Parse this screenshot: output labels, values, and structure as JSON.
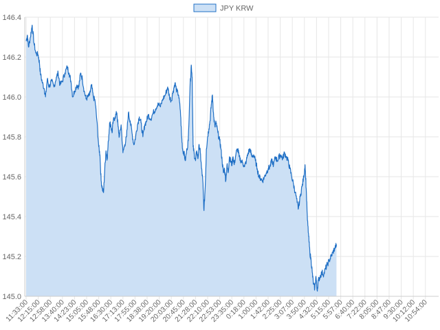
{
  "chart_data": {
    "type": "area",
    "title": "",
    "xlabel": "",
    "ylabel": "",
    "legend": {
      "position": "top-center"
    },
    "grid": true,
    "ylim": [
      145.0,
      146.4
    ],
    "y_ticks": [
      "145.0",
      "145.2",
      "145.4",
      "145.6",
      "145.8",
      "146.0",
      "146.2",
      "146.4"
    ],
    "x_tick_labels": [
      "11:33:00",
      "12:15:00",
      "12:58:00",
      "13:40:00",
      "14:23:00",
      "15:05:00",
      "15:48:00",
      "16:30:00",
      "17:13:00",
      "17:55:00",
      "18:38:00",
      "19:20:00",
      "20:03:00",
      "20:45:00",
      "21:28:00",
      "22:10:00",
      "22:53:00",
      "23:35:00",
      "0:18:00",
      "1:00:00",
      "1:42:00",
      "2:25:00",
      "3:07:00",
      "3:50:00",
      "4:32:00",
      "5:15:00",
      "5:57:00",
      "6:40:00",
      "7:22:00",
      "8:05:00",
      "8:47:00",
      "9:30:00",
      "10:12:00",
      "10:54:00"
    ],
    "series": [
      {
        "name": "JPY KRW",
        "color": "#1f6fc5",
        "fill": "#cce0f5",
        "points": [
          [
            0,
            146.28
          ],
          [
            0.1,
            146.31
          ],
          [
            0.2,
            146.25
          ],
          [
            0.35,
            146.3
          ],
          [
            0.5,
            146.36
          ],
          [
            0.65,
            146.27
          ],
          [
            0.8,
            146.22
          ],
          [
            1.0,
            146.21
          ],
          [
            1.1,
            146.17
          ],
          [
            1.2,
            146.11
          ],
          [
            1.35,
            146.07
          ],
          [
            1.5,
            146.04
          ],
          [
            1.6,
            146.0
          ],
          [
            1.75,
            146.09
          ],
          [
            1.9,
            146.05
          ],
          [
            2.1,
            146.08
          ],
          [
            2.3,
            146.05
          ],
          [
            2.5,
            146.1
          ],
          [
            2.65,
            146.12
          ],
          [
            2.8,
            146.06
          ],
          [
            3.0,
            146.08
          ],
          [
            3.2,
            146.12
          ],
          [
            3.4,
            146.15
          ],
          [
            3.55,
            146.12
          ],
          [
            3.7,
            146.08
          ],
          [
            3.85,
            146.0
          ],
          [
            4.0,
            146.03
          ],
          [
            4.2,
            146.06
          ],
          [
            4.35,
            146.05
          ],
          [
            4.5,
            146.12
          ],
          [
            4.65,
            146.09
          ],
          [
            4.8,
            146.03
          ],
          [
            4.95,
            145.99
          ],
          [
            5.1,
            146.0
          ],
          [
            5.25,
            146.01
          ],
          [
            5.4,
            146.06
          ],
          [
            5.55,
            146.0
          ],
          [
            5.7,
            145.98
          ],
          [
            5.85,
            145.88
          ],
          [
            6.0,
            145.75
          ],
          [
            6.1,
            145.71
          ],
          [
            6.2,
            145.58
          ],
          [
            6.3,
            145.54
          ],
          [
            6.4,
            145.52
          ],
          [
            6.5,
            145.64
          ],
          [
            6.6,
            145.73
          ],
          [
            6.7,
            145.69
          ],
          [
            6.8,
            145.78
          ],
          [
            6.9,
            145.87
          ],
          [
            7.0,
            145.86
          ],
          [
            7.1,
            145.82
          ],
          [
            7.2,
            145.88
          ],
          [
            7.35,
            145.9
          ],
          [
            7.5,
            145.92
          ],
          [
            7.6,
            145.85
          ],
          [
            7.7,
            145.8
          ],
          [
            7.85,
            145.86
          ],
          [
            8.0,
            145.72
          ],
          [
            8.15,
            145.76
          ],
          [
            8.3,
            145.8
          ],
          [
            8.45,
            145.92
          ],
          [
            8.6,
            145.88
          ],
          [
            8.75,
            145.82
          ],
          [
            8.9,
            145.76
          ],
          [
            9.05,
            145.8
          ],
          [
            9.2,
            145.86
          ],
          [
            9.35,
            145.9
          ],
          [
            9.5,
            145.87
          ],
          [
            9.65,
            145.8
          ],
          [
            9.8,
            145.86
          ],
          [
            9.95,
            145.88
          ],
          [
            10.1,
            145.91
          ],
          [
            10.3,
            145.89
          ],
          [
            10.5,
            145.92
          ],
          [
            10.7,
            145.94
          ],
          [
            10.9,
            145.97
          ],
          [
            11.1,
            145.95
          ],
          [
            11.3,
            145.99
          ],
          [
            11.5,
            146.01
          ],
          [
            11.7,
            146.05
          ],
          [
            11.85,
            146.0
          ],
          [
            12.0,
            145.98
          ],
          [
            12.15,
            146.03
          ],
          [
            12.3,
            146.07
          ],
          [
            12.45,
            146.03
          ],
          [
            12.6,
            146.01
          ],
          [
            12.75,
            145.93
          ],
          [
            12.85,
            145.8
          ],
          [
            12.95,
            145.73
          ],
          [
            13.05,
            145.72
          ],
          [
            13.15,
            145.68
          ],
          [
            13.3,
            145.74
          ],
          [
            13.4,
            145.78
          ],
          [
            13.55,
            146.06
          ],
          [
            13.65,
            146.16
          ],
          [
            13.72,
            146.1
          ],
          [
            13.8,
            145.75
          ],
          [
            13.9,
            145.71
          ],
          [
            14.0,
            145.68
          ],
          [
            14.1,
            145.73
          ],
          [
            14.2,
            145.69
          ],
          [
            14.3,
            145.76
          ],
          [
            14.4,
            145.72
          ],
          [
            14.5,
            145.64
          ],
          [
            14.6,
            145.58
          ],
          [
            14.7,
            145.43
          ],
          [
            14.8,
            145.55
          ],
          [
            14.9,
            145.74
          ],
          [
            15.0,
            145.8
          ],
          [
            15.1,
            145.84
          ],
          [
            15.2,
            145.88
          ],
          [
            15.3,
            145.96
          ],
          [
            15.4,
            146.01
          ],
          [
            15.5,
            145.9
          ],
          [
            15.6,
            145.85
          ],
          [
            15.7,
            145.87
          ],
          [
            15.85,
            145.82
          ],
          [
            16.0,
            145.78
          ],
          [
            16.1,
            145.74
          ],
          [
            16.2,
            145.68
          ],
          [
            16.3,
            145.62
          ],
          [
            16.4,
            145.64
          ],
          [
            16.5,
            145.58
          ],
          [
            16.6,
            145.66
          ],
          [
            16.7,
            145.62
          ],
          [
            16.8,
            145.7
          ],
          [
            16.9,
            145.68
          ],
          [
            17.0,
            145.66
          ],
          [
            17.1,
            145.7
          ],
          [
            17.2,
            145.66
          ],
          [
            17.35,
            145.72
          ],
          [
            17.5,
            145.74
          ],
          [
            17.6,
            145.7
          ],
          [
            17.75,
            145.68
          ],
          [
            17.9,
            145.67
          ],
          [
            18.05,
            145.65
          ],
          [
            18.2,
            145.68
          ],
          [
            18.35,
            145.72
          ],
          [
            18.5,
            145.74
          ],
          [
            18.65,
            145.7
          ],
          [
            18.8,
            145.71
          ],
          [
            18.95,
            145.68
          ],
          [
            19.1,
            145.64
          ],
          [
            19.25,
            145.6
          ],
          [
            19.4,
            145.59
          ],
          [
            19.55,
            145.58
          ],
          [
            19.7,
            145.6
          ],
          [
            19.85,
            145.62
          ],
          [
            20.0,
            145.64
          ],
          [
            20.15,
            145.65
          ],
          [
            20.3,
            145.68
          ],
          [
            20.45,
            145.66
          ],
          [
            20.6,
            145.7
          ],
          [
            20.75,
            145.68
          ],
          [
            20.9,
            145.7
          ],
          [
            21.05,
            145.71
          ],
          [
            21.2,
            145.69
          ],
          [
            21.35,
            145.72
          ],
          [
            21.5,
            145.7
          ],
          [
            21.65,
            145.68
          ],
          [
            21.8,
            145.64
          ],
          [
            21.95,
            145.6
          ],
          [
            22.1,
            145.56
          ],
          [
            22.25,
            145.52
          ],
          [
            22.4,
            145.47
          ],
          [
            22.5,
            145.44
          ],
          [
            22.65,
            145.5
          ],
          [
            22.8,
            145.55
          ],
          [
            22.95,
            145.6
          ],
          [
            23.05,
            145.66
          ],
          [
            23.15,
            145.54
          ],
          [
            23.25,
            145.38
          ],
          [
            23.35,
            145.3
          ],
          [
            23.45,
            145.22
          ],
          [
            23.55,
            145.18
          ],
          [
            23.65,
            145.12
          ],
          [
            23.75,
            145.06
          ],
          [
            23.85,
            145.04
          ],
          [
            23.95,
            145.1
          ],
          [
            24.05,
            145.03
          ],
          [
            24.15,
            145.08
          ],
          [
            24.3,
            145.1
          ],
          [
            24.45,
            145.12
          ],
          [
            24.6,
            145.11
          ],
          [
            24.75,
            145.14
          ],
          [
            24.9,
            145.16
          ],
          [
            25.05,
            145.18
          ],
          [
            25.2,
            145.2
          ],
          [
            25.35,
            145.22
          ],
          [
            25.5,
            145.24
          ],
          [
            25.65,
            145.26
          ]
        ]
      }
    ]
  }
}
